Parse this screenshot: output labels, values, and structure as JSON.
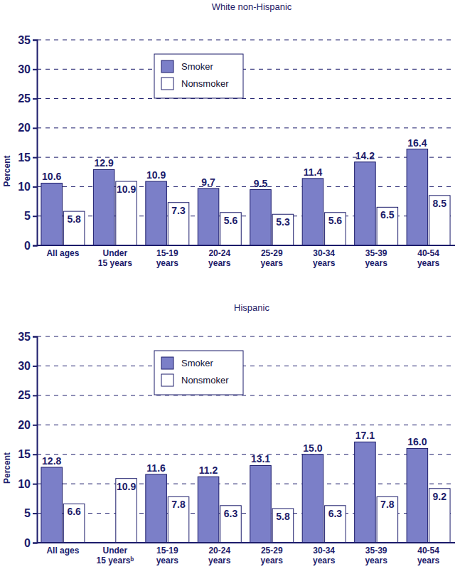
{
  "chart_data": [
    {
      "type": "bar",
      "title": "White non-Hispanic",
      "y_label": "Percent",
      "categories": [
        "All ages",
        "Under\n15 years",
        "15-19\nyears",
        "20-24\nyears",
        "25-29\nyears",
        "30-34\nyears",
        "35-39\nyears",
        "40-54\nyears"
      ],
      "series": [
        {
          "name": "Smoker",
          "color": "#7b7fc8",
          "values": [
            10.6,
            12.9,
            10.9,
            9.7,
            9.5,
            11.4,
            14.2,
            16.4
          ]
        },
        {
          "name": "Nonsmoker",
          "color": "#ffffff",
          "values": [
            5.8,
            10.9,
            7.3,
            5.6,
            5.3,
            5.6,
            6.5,
            8.5
          ]
        }
      ],
      "ylim": [
        0,
        35
      ],
      "yticks": [
        0,
        5,
        10,
        15,
        20,
        25,
        30,
        35
      ],
      "grid": true,
      "legend": "upper left",
      "data_labels": true
    },
    {
      "type": "bar",
      "title": "Hispanic",
      "y_label": "Percent",
      "categories": [
        "All ages",
        "Under\n15 yearsᵇ",
        "15-19\nyears",
        "20-24\nyears",
        "25-29\nyears",
        "30-34\nyears",
        "35-39\nyears",
        "40-54\nyears"
      ],
      "series": [
        {
          "name": "Smoker",
          "color": "#7b7fc8",
          "values": [
            12.8,
            null,
            11.6,
            11.2,
            13.1,
            15.0,
            17.1,
            16.0
          ],
          "value_labels": [
            "12.8",
            null,
            "11.6",
            "11.2",
            "13.1",
            "15.0",
            "17.1",
            "16.0"
          ]
        },
        {
          "name": "Nonsmoker",
          "color": "#ffffff",
          "values": [
            6.6,
            10.9,
            7.8,
            6.3,
            5.8,
            6.3,
            7.8,
            9.2
          ]
        }
      ],
      "ylim": [
        0,
        35
      ],
      "yticks": [
        0,
        5,
        10,
        15,
        20,
        25,
        30,
        35
      ],
      "grid": true,
      "legend": "upper left",
      "data_labels": true
    }
  ]
}
